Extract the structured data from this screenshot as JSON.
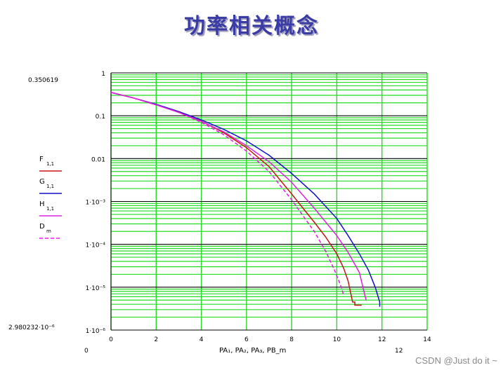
{
  "slide": {
    "title": "功率相关概念",
    "watermark": "CSDN @Just do it ~"
  },
  "colors": {
    "title": "#3b3ba6",
    "grid_minor": "#22dd22",
    "grid_major": "#000000",
    "red": "#cc1111",
    "blue": "#1111cc",
    "magenta": "#dd22dd",
    "dashed": "#dd22dd"
  },
  "chart_data": {
    "type": "line",
    "xlim": [
      0,
      14
    ],
    "ylim_log10": [
      -6,
      0
    ],
    "y_scale": "log",
    "grid": true,
    "x_ticks": [
      "0",
      "2",
      "4",
      "6",
      "8",
      "10",
      "12",
      "14"
    ],
    "y_ticks": [
      "1",
      "0.1",
      "0.01",
      "1·10⁻³",
      "1·10⁻⁴",
      "1·10⁻⁵",
      "1·10⁻⁶"
    ],
    "ymax_readout": "0.350619",
    "ymin_readout": "2.980232·10⁻⁶",
    "xmin_readout": "0",
    "xmax_readout": "12",
    "xlabel": "PA₁, PA₂, PA₃, PB_m",
    "legend": [
      {
        "label": "F",
        "sub": "1,1",
        "style": "solid",
        "color_key": "red"
      },
      {
        "label": "G",
        "sub": "1,1",
        "style": "solid",
        "color_key": "blue"
      },
      {
        "label": "H",
        "sub": "1,1",
        "style": "solid",
        "color_key": "magenta"
      },
      {
        "label": "D",
        "sub": "m",
        "style": "dashed",
        "color_key": "dashed"
      }
    ],
    "series": [
      {
        "name": "F",
        "color_key": "red",
        "style": "solid",
        "x": [
          0,
          1,
          2,
          3,
          4,
          5,
          6,
          7,
          8,
          8.5,
          9,
          9.5,
          10,
          10.3,
          10.5,
          10.7,
          10.8,
          10.8,
          11.1
        ],
        "y": [
          0.35,
          0.26,
          0.18,
          0.12,
          0.075,
          0.04,
          0.018,
          0.0065,
          0.0015,
          0.0007,
          0.00033,
          0.00015,
          6e-05,
          2.8e-05,
          1.4e-05,
          4.5e-06,
          4.5e-06,
          3.8e-06,
          3.8e-06
        ]
      },
      {
        "name": "G",
        "color_key": "blue",
        "style": "solid",
        "x": [
          0,
          1,
          2,
          3,
          4,
          5,
          6,
          7,
          8,
          9,
          10,
          10.5,
          11,
          11.4,
          11.7,
          11.9,
          11.9
        ],
        "y": [
          0.35,
          0.26,
          0.185,
          0.125,
          0.08,
          0.048,
          0.026,
          0.012,
          0.0045,
          0.0015,
          0.0004,
          0.00016,
          6e-05,
          2.5e-05,
          1e-05,
          4.5e-06,
          3.5e-06
        ]
      },
      {
        "name": "H",
        "color_key": "magenta",
        "style": "solid",
        "x": [
          0,
          1,
          2,
          3,
          4,
          5,
          6,
          7,
          8,
          9,
          10,
          10.5,
          11,
          11.2,
          11.3
        ],
        "y": [
          0.35,
          0.26,
          0.18,
          0.12,
          0.074,
          0.042,
          0.02,
          0.0085,
          0.0028,
          0.0007,
          0.00016,
          6.5e-05,
          2.2e-05,
          8e-06,
          5e-06
        ]
      },
      {
        "name": "D",
        "color_key": "dashed",
        "style": "dashed",
        "x": [
          0,
          1,
          2,
          3,
          4,
          5,
          6,
          7,
          8,
          9,
          9.5,
          9.9,
          10.2,
          10.3
        ],
        "y": [
          0.35,
          0.26,
          0.18,
          0.12,
          0.07,
          0.036,
          0.015,
          0.005,
          0.0011,
          0.0002,
          7e-05,
          2.5e-05,
          1e-05,
          6.5e-06
        ]
      }
    ]
  }
}
